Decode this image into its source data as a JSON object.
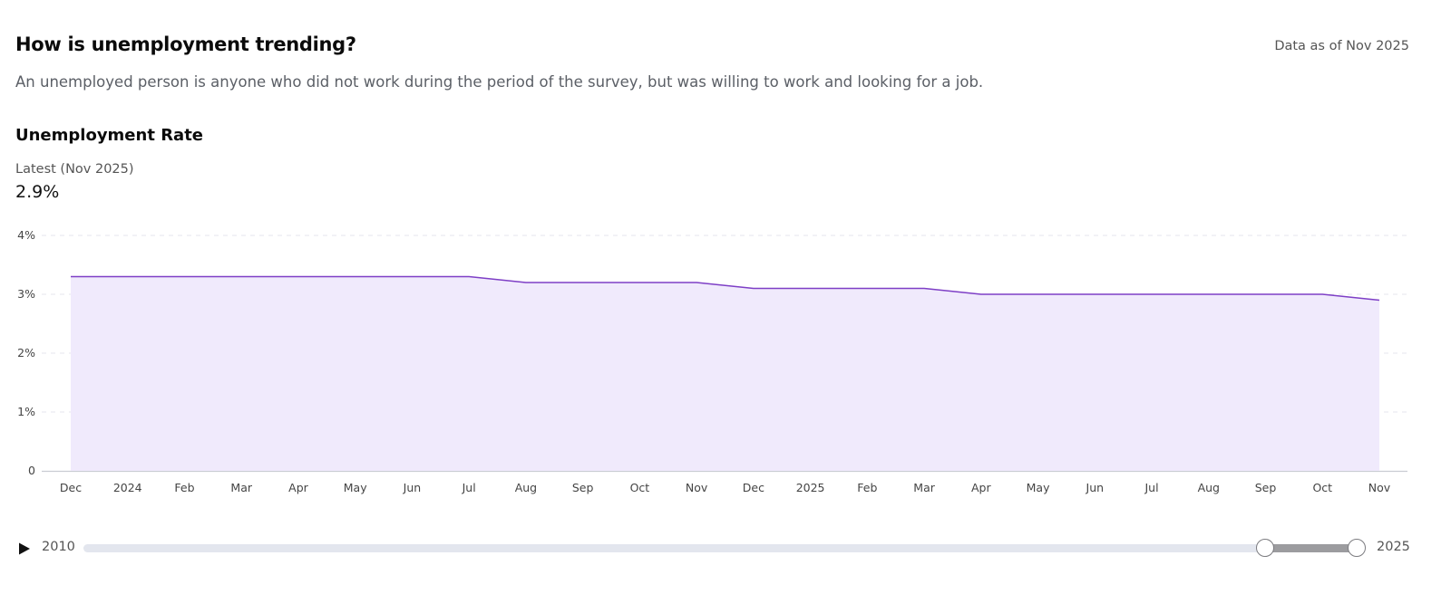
{
  "header": {
    "title": "How is unemployment trending?",
    "data_as_of": "Data as of Nov 2025",
    "description": "An unemployed person is anyone who did not work during the period of the survey, but was willing to work and looking for a job."
  },
  "chart": {
    "title": "Unemployment Rate",
    "latest_label": "Latest (Nov 2025)",
    "latest_value": "2.9%"
  },
  "chart_data": {
    "type": "area",
    "title": "Unemployment Rate",
    "xlabel": "",
    "ylabel": "",
    "x": [
      "Dec 2023",
      "Jan 2024",
      "Feb 2024",
      "Mar 2024",
      "Apr 2024",
      "May 2024",
      "Jun 2024",
      "Jul 2024",
      "Aug 2024",
      "Sep 2024",
      "Oct 2024",
      "Nov 2024",
      "Dec 2024",
      "Jan 2025",
      "Feb 2025",
      "Mar 2025",
      "Apr 2025",
      "May 2025",
      "Jun 2025",
      "Jul 2025",
      "Aug 2025",
      "Sep 2025",
      "Oct 2025",
      "Nov 2025"
    ],
    "x_tick_labels": [
      "Dec",
      "2024",
      "Feb",
      "Mar",
      "Apr",
      "May",
      "Jun",
      "Jul",
      "Aug",
      "Sep",
      "Oct",
      "Nov",
      "Dec",
      "2025",
      "Feb",
      "Mar",
      "Apr",
      "May",
      "Jun",
      "Jul",
      "Aug",
      "Sep",
      "Oct",
      "Nov"
    ],
    "series": [
      {
        "values": [
          3.3,
          3.3,
          3.3,
          3.3,
          3.3,
          3.3,
          3.3,
          3.3,
          3.2,
          3.2,
          3.2,
          3.2,
          3.1,
          3.1,
          3.1,
          3.1,
          3.0,
          3.0,
          3.0,
          3.0,
          3.0,
          3.0,
          3.0,
          2.9
        ]
      }
    ],
    "ylim": [
      0,
      4
    ],
    "y_ticks": [
      0,
      1,
      2,
      3,
      4
    ],
    "y_tick_labels": [
      "0",
      "1%",
      "2%",
      "3%",
      "4%"
    ],
    "grid": true,
    "legend": "none",
    "colors": {
      "line": "#7e3fc6",
      "fill": "#f0eafc",
      "grid": "#e4e6ec",
      "axis": "#c9ccd3"
    }
  },
  "range_slider": {
    "start_label": "2010",
    "end_label": "2025",
    "min_year": 2010,
    "max_year": 2025,
    "selected_start": 2023.917,
    "selected_end": 2025.0
  },
  "icons": {
    "play": "play-icon"
  }
}
